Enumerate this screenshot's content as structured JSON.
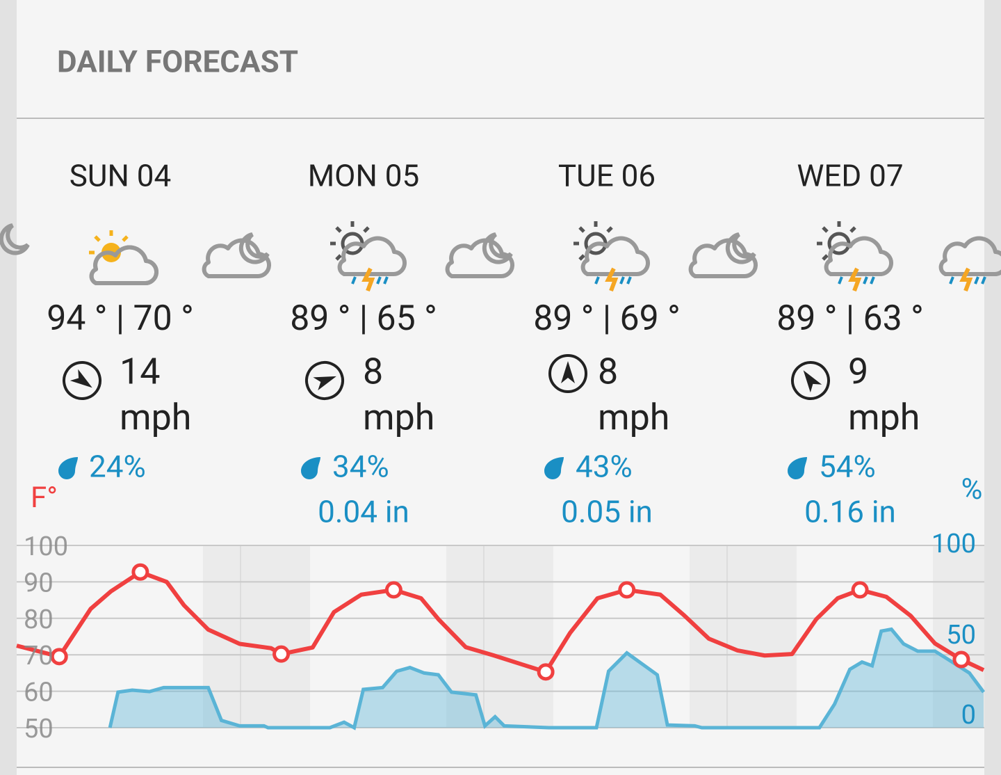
{
  "header": {
    "title": "DAILY FORECAST"
  },
  "days": [
    {
      "name": "SUN  04",
      "temps": "94 ° | 70 °",
      "wind_speed": "14",
      "wind_unit": "mph",
      "precip_chance": "24%"
    },
    {
      "name": "MON  05",
      "temps": "89 ° | 65 °",
      "wind_speed": "8",
      "wind_unit": "mph",
      "precip_chance": "34%",
      "precip_amount": "0.04 in"
    },
    {
      "name": "TUE  06",
      "temps": "89 ° | 69 °",
      "wind_speed": "8",
      "wind_unit": "mph",
      "precip_chance": "43%",
      "precip_amount": "0.05 in"
    },
    {
      "name": "WED  07",
      "temps": "89 ° | 63 °",
      "wind_speed": "9",
      "wind_unit": "mph",
      "precip_chance": "54%",
      "precip_amount": "0.16 in"
    }
  ],
  "chart_data": {
    "type": "line",
    "ylabel": "F°",
    "y2label": "%",
    "xlim": [
      1.9,
      97.3
    ],
    "ylim": [
      50,
      100
    ],
    "yticks": [
      50,
      60,
      70,
      80,
      90,
      100
    ],
    "y2lim": [
      0,
      100
    ],
    "y2ticks": [
      0,
      50,
      100
    ],
    "grid": true,
    "series": [
      {
        "type": "line",
        "color": "#f04040",
        "x": [
          1.9,
          6.1,
          9.2,
          11.2,
          14.1,
          16.7,
          18.4,
          20.8,
          23.9,
          27.0,
          28.0,
          31.1,
          33.2,
          35.9,
          39.1,
          41.8,
          43.5,
          46.2,
          49.0,
          51.7,
          54.1,
          56.5,
          59.2,
          62.1,
          65.4,
          67.8,
          70.2,
          73.0,
          75.7,
          78.4,
          80.8,
          82.9,
          85.1,
          87.7,
          90.1,
          92.5,
          95.1,
          97.3
        ],
        "values": [
          72.5,
          69.5,
          82.6,
          87.4,
          92.7,
          90,
          83.6,
          76.9,
          73,
          71.8,
          70.2,
          72,
          81.7,
          86.5,
          87.8,
          85.5,
          79.8,
          72.1,
          69.8,
          67.4,
          65.3,
          76,
          85.5,
          87.8,
          86.5,
          80.7,
          74.4,
          71.2,
          69.8,
          70.2,
          79.8,
          85.5,
          87.8,
          85.9,
          80.7,
          73.1,
          68.7,
          65.8
        ]
      },
      {
        "type": "scatter",
        "color": "#f04040",
        "x": [
          6.1,
          14.1,
          28.0,
          39.1,
          54.1,
          62.1,
          85.1,
          95.1
        ],
        "values": [
          69.5,
          92.7,
          70.2,
          87.8,
          65.3,
          87.8,
          87.8,
          68.7
        ]
      },
      {
        "type": "area",
        "color": "#5ab4d6",
        "axis": "y2",
        "x": [
          11.1,
          11.9,
          13.3,
          15.0,
          16.4,
          20.8,
          22.1,
          23.9,
          26.3,
          26.7,
          32.8,
          34.2,
          35.2,
          36.1,
          38.0,
          39.4,
          40.7,
          42.1,
          43.5,
          44.8,
          47.2,
          48.1,
          49.1,
          50.0,
          54.4,
          59.1,
          60.3,
          62.1,
          65.1,
          66.1,
          68.8,
          69.5,
          81.1,
          82.6,
          84.1,
          85.3,
          86.3,
          87.2,
          88.2,
          89.4,
          90.8,
          92.5,
          93.5,
          95.9,
          97.3
        ],
        "values": [
          0,
          19.5,
          20.6,
          19.8,
          22,
          22,
          4,
          1,
          1,
          0,
          0,
          3,
          0,
          21,
          22,
          31,
          33,
          30,
          29,
          19.5,
          18,
          1,
          6,
          1,
          0,
          0,
          31,
          41,
          29,
          1.5,
          1,
          0,
          0,
          13,
          32,
          36,
          34,
          53,
          54,
          46,
          42,
          42,
          38.5,
          30,
          19.5
        ]
      }
    ]
  }
}
